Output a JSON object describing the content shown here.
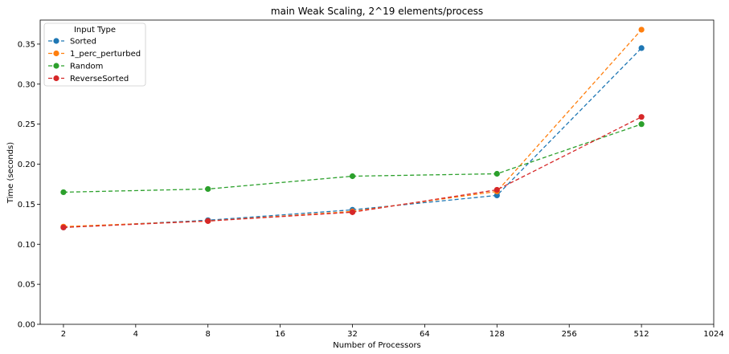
{
  "chart_data": {
    "type": "line",
    "title": "main Weak Scaling, 2^19 elements/process",
    "xlabel": "Number of Processors",
    "ylabel": "Time (seconds)",
    "x_scale": "log2",
    "xlim": [
      1.6,
      1024
    ],
    "ylim": [
      0,
      0.38
    ],
    "x_ticks": [
      2,
      4,
      8,
      16,
      32,
      64,
      128,
      256,
      512,
      1024
    ],
    "y_ticks": [
      0.0,
      0.05,
      0.1,
      0.15,
      0.2,
      0.25,
      0.3,
      0.35
    ],
    "x_tick_labels": [
      "2",
      "4",
      "8",
      "16",
      "32",
      "64",
      "128",
      "256",
      "512",
      "1024"
    ],
    "y_tick_labels": [
      "0.00",
      "0.05",
      "0.10",
      "0.15",
      "0.20",
      "0.25",
      "0.30",
      "0.35"
    ],
    "x": [
      2,
      8,
      32,
      128,
      512
    ],
    "grid": false,
    "legend": {
      "title": "Input Type",
      "placement": "top-left"
    },
    "series": [
      {
        "name": "Sorted",
        "color": "#1f77b4",
        "values": [
          0.121,
          0.13,
          0.143,
          0.161,
          0.345
        ]
      },
      {
        "name": "1_perc_perturbed",
        "color": "#ff7f0e",
        "values": [
          0.122,
          0.129,
          0.141,
          0.166,
          0.368
        ]
      },
      {
        "name": "Random",
        "color": "#2ca02c",
        "values": [
          0.165,
          0.169,
          0.185,
          0.188,
          0.25
        ]
      },
      {
        "name": "ReverseSorted",
        "color": "#d62728",
        "values": [
          0.121,
          0.129,
          0.14,
          0.168,
          0.259
        ]
      }
    ]
  }
}
